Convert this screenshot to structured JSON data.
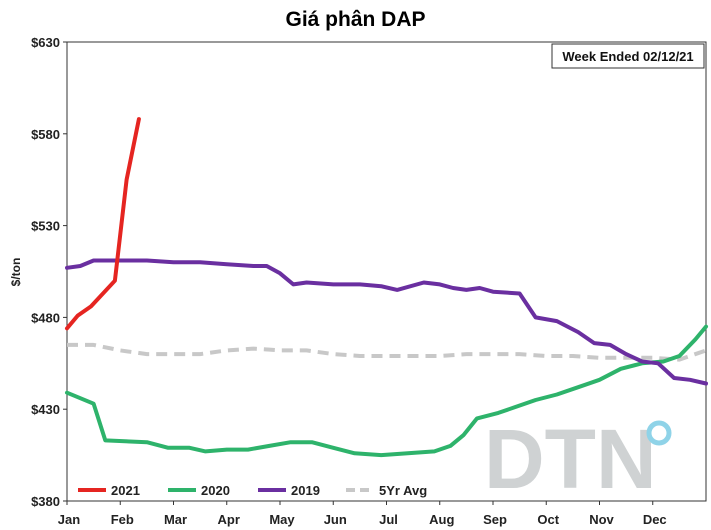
{
  "chart_data": {
    "type": "line",
    "title": "Giá phân DAP",
    "ylabel": "$/ton",
    "note": "Week Ended 02/12/21",
    "watermark": "DTN",
    "xlim": [
      0,
      12
    ],
    "ylim": [
      380,
      630
    ],
    "yticks": [
      {
        "value": 630,
        "label": "$630"
      },
      {
        "value": 580,
        "label": "$580"
      },
      {
        "value": 530,
        "label": "$530"
      },
      {
        "value": 480,
        "label": "$480"
      },
      {
        "value": 430,
        "label": "$430"
      },
      {
        "value": 380,
        "label": "$380"
      }
    ],
    "xticks": [
      "Jan",
      "Feb",
      "Mar",
      "Apr",
      "May",
      "Jun",
      "Jul",
      "Aug",
      "Sep",
      "Oct",
      "Nov",
      "Dec"
    ],
    "grid": false,
    "legend_position": "bottom-left",
    "series": [
      {
        "name": "2021",
        "color": "#e52521",
        "dash": false,
        "x": [
          0.0,
          0.2,
          0.45,
          0.9,
          1.12,
          1.35
        ],
        "y": [
          474,
          481,
          486,
          500,
          555,
          588
        ]
      },
      {
        "name": "2020",
        "color": "#2eb36b",
        "dash": false,
        "x": [
          0.0,
          0.5,
          0.72,
          1.5,
          1.9,
          2.3,
          2.6,
          3.0,
          3.4,
          3.8,
          4.2,
          4.6,
          5.0,
          5.4,
          5.9,
          6.4,
          6.9,
          7.2,
          7.45,
          7.7,
          8.1,
          8.4,
          8.8,
          9.2,
          9.6,
          10.0,
          10.4,
          10.8,
          11.2,
          11.5,
          11.8,
          12.0
        ],
        "y": [
          439,
          433,
          413,
          412,
          409,
          409,
          407,
          408,
          408,
          410,
          412,
          412,
          409,
          406,
          405,
          406,
          407,
          410,
          416,
          425,
          428,
          431,
          435,
          438,
          442,
          446,
          452,
          455,
          456,
          459,
          468,
          475
        ]
      },
      {
        "name": "2019",
        "color": "#6a2fa0",
        "dash": false,
        "x": [
          0.0,
          0.25,
          0.5,
          0.75,
          1.0,
          1.5,
          2.0,
          2.5,
          3.0,
          3.5,
          3.75,
          4.0,
          4.25,
          4.5,
          5.0,
          5.5,
          5.9,
          6.2,
          6.7,
          7.0,
          7.25,
          7.5,
          7.75,
          8.0,
          8.5,
          8.8,
          9.2,
          9.6,
          9.9,
          10.2,
          10.5,
          10.8,
          11.1,
          11.4,
          11.7,
          12.0
        ],
        "y": [
          507,
          508,
          511,
          511,
          511,
          511,
          510,
          510,
          509,
          508,
          508,
          504,
          498,
          499,
          498,
          498,
          497,
          495,
          499,
          498,
          496,
          495,
          496,
          494,
          493,
          480,
          478,
          472,
          466,
          465,
          460,
          456,
          455,
          447,
          446,
          444
        ]
      },
      {
        "name": "5Yr Avg",
        "color": "#c8c8c8",
        "dash": true,
        "x": [
          0.0,
          0.5,
          1.0,
          1.5,
          2.0,
          2.5,
          3.0,
          3.5,
          4.0,
          4.5,
          5.0,
          5.5,
          6.0,
          6.5,
          7.0,
          7.5,
          8.0,
          8.5,
          9.0,
          9.5,
          10.0,
          10.5,
          11.0,
          11.5,
          12.0
        ],
        "y": [
          465,
          465,
          462,
          460,
          460,
          460,
          462,
          463,
          462,
          462,
          460,
          459,
          459,
          459,
          459,
          460,
          460,
          460,
          459,
          459,
          458,
          458,
          458,
          457,
          462
        ]
      }
    ]
  }
}
